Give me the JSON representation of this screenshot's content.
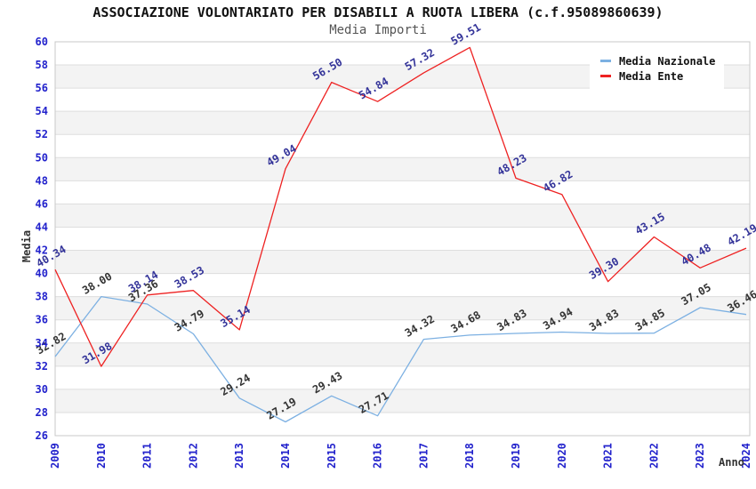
{
  "chart": {
    "title": "ASSOCIAZIONE VOLONTARIATO PER DISABILI A RUOTA LIBERA (c.f.95089860639)",
    "subtitle": "Media Importi",
    "ylabel": "Media",
    "xlabel": "Anno"
  },
  "chart_data": {
    "type": "line",
    "title": "ASSOCIAZIONE VOLONTARIATO PER DISABILI A RUOTA LIBERA (c.f.95089860639)",
    "subtitle": "Media Importi",
    "xlabel": "Anno",
    "ylabel": "Media",
    "x": [
      "2009",
      "2010",
      "2011",
      "2012",
      "2013",
      "2014",
      "2015",
      "2016",
      "2017",
      "2018",
      "2019",
      "2020",
      "2021",
      "2022",
      "2023",
      "2024"
    ],
    "series": [
      {
        "name": "Media Nazionale",
        "color": "#7cb0e2",
        "label_color": "#333333",
        "values": [
          32.82,
          38.0,
          37.36,
          34.79,
          29.24,
          27.19,
          29.43,
          27.71,
          34.32,
          34.68,
          34.83,
          34.94,
          34.83,
          34.85,
          37.05,
          36.46
        ]
      },
      {
        "name": "Media Ente",
        "color": "#ee2222",
        "label_color": "#333399",
        "values": [
          40.34,
          31.98,
          38.14,
          38.53,
          35.14,
          49.04,
          56.5,
          54.84,
          57.32,
          59.51,
          48.23,
          46.82,
          39.3,
          43.15,
          40.48,
          42.19
        ]
      }
    ],
    "ylim": [
      26,
      60
    ],
    "ytick_step": 2,
    "grid": true,
    "band_fill": true,
    "legend_position": "top-right"
  },
  "colors": {
    "tick_label": "#2222cc",
    "band": "#f3f3f3",
    "grid": "#dedede",
    "border": "#c8c8c8",
    "background": "#ffffff"
  }
}
